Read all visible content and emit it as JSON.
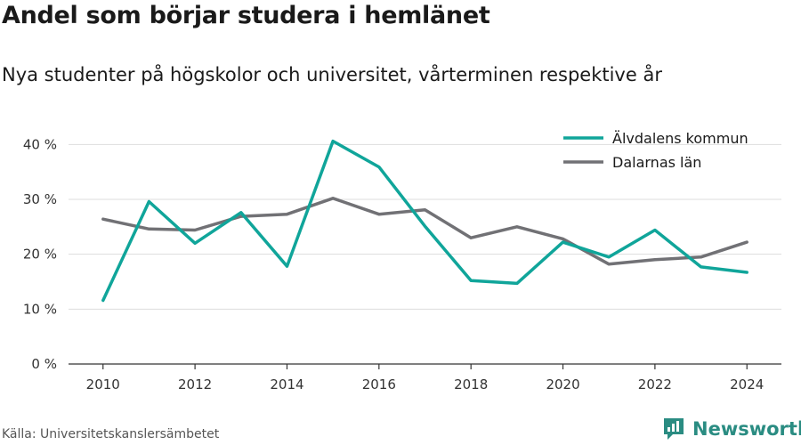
{
  "title": "Andel som börjar studera i hemlänet",
  "subtitle": "Nya studenter på högskolor och universitet, vårterminen respektive år",
  "source": "Källa: Universitetskanslersämbetet",
  "brand": "Newsworthy",
  "colors": {
    "series1": "#10a59a",
    "series2": "#717175",
    "grid": "#dddddd",
    "brand": "#2a8c82"
  },
  "chart_data": {
    "type": "line",
    "x": [
      2010,
      2011,
      2012,
      2013,
      2014,
      2015,
      2016,
      2017,
      2018,
      2019,
      2020,
      2021,
      2022,
      2023,
      2024
    ],
    "series": [
      {
        "name": "Älvdalens kommun",
        "color": "#10a59a",
        "values": [
          11.6,
          29.6,
          22.0,
          27.6,
          17.8,
          40.6,
          35.9,
          25.1,
          15.2,
          14.7,
          22.2,
          19.5,
          24.4,
          17.7,
          16.7
        ]
      },
      {
        "name": "Dalarnas län",
        "color": "#717175",
        "values": [
          26.4,
          24.6,
          24.4,
          26.9,
          27.3,
          30.2,
          27.3,
          28.1,
          23.0,
          25.0,
          22.8,
          18.2,
          19.0,
          19.5,
          22.2
        ]
      }
    ],
    "xticks": [
      2010,
      2012,
      2014,
      2016,
      2018,
      2020,
      2022,
      2024
    ],
    "xtick_labels": [
      "2010",
      "2012",
      "2014",
      "2016",
      "2018",
      "2020",
      "2022",
      "2024"
    ],
    "yticks": [
      0,
      10,
      20,
      30,
      40
    ],
    "ytick_labels": [
      "0 %",
      "10 %",
      "20 %",
      "30 %",
      "40 %"
    ],
    "xlim": [
      2009.25,
      2024.75
    ],
    "ylim": [
      0,
      42
    ],
    "grid": true,
    "legend": "top-right"
  }
}
